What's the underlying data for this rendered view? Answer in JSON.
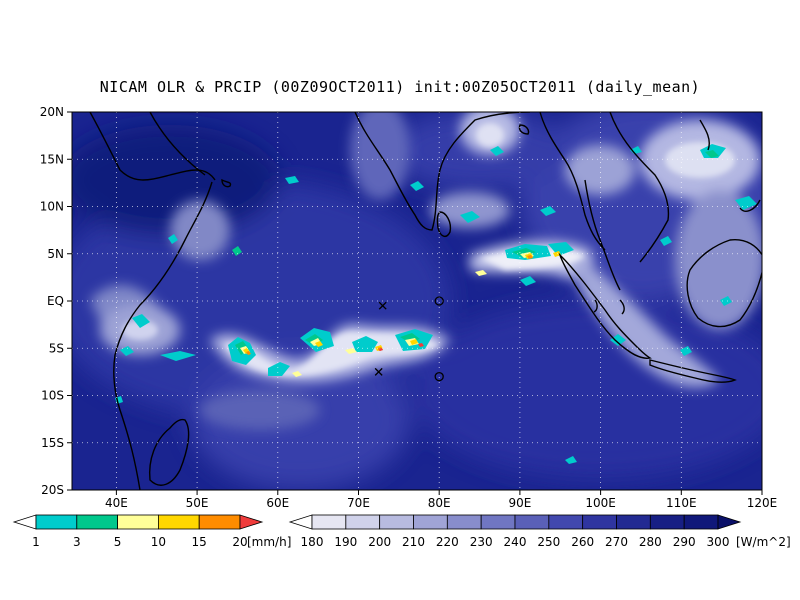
{
  "title": "NICAM OLR & PRCIP (00Z09OCT2011) init:00Z05OCT2011 (daily_mean)",
  "map": {
    "lat_labels": [
      "20N",
      "15N",
      "10N",
      "5N",
      "EQ",
      "5S",
      "10S",
      "15S",
      "20S"
    ],
    "lon_labels": [
      "40E",
      "50E",
      "60E",
      "70E",
      "80E",
      "90E",
      "100E",
      "110E",
      "120E"
    ],
    "extent": {
      "lon_min": 34.5,
      "lon_max": 120,
      "lat_min": -20,
      "lat_max": 20
    },
    "markers": [
      {
        "symbol": "x",
        "lon": 73.0,
        "lat": -0.5
      },
      {
        "symbol": "x",
        "lon": 72.5,
        "lat": -7.5
      },
      {
        "symbol": "o",
        "lon": 80.0,
        "lat": 0.0
      },
      {
        "symbol": "o",
        "lon": 80.0,
        "lat": -8.0
      }
    ]
  },
  "legends": {
    "precip": {
      "unit": "[mm/h]",
      "ticks": [
        "1",
        "3",
        "5",
        "10",
        "15",
        "20"
      ],
      "colors": [
        "#ffffff",
        "#00cccc",
        "#00c88c",
        "#ffff99",
        "#ffd700",
        "#ff8c00",
        "#f03c3c"
      ]
    },
    "olr": {
      "unit": "[W/m^2]",
      "ticks": [
        "180",
        "190",
        "200",
        "210",
        "220",
        "230",
        "240",
        "250",
        "260",
        "270",
        "280",
        "290",
        "300"
      ],
      "colors": [
        "#ffffff",
        "#e6e6f2",
        "#d0d2ea",
        "#b8bbe0",
        "#a0a4d6",
        "#888dcc",
        "#7076c2",
        "#5a60b8",
        "#4248ae",
        "#2f35a0",
        "#222a92",
        "#171f84",
        "#10187a",
        "#0a1068"
      ]
    }
  }
}
